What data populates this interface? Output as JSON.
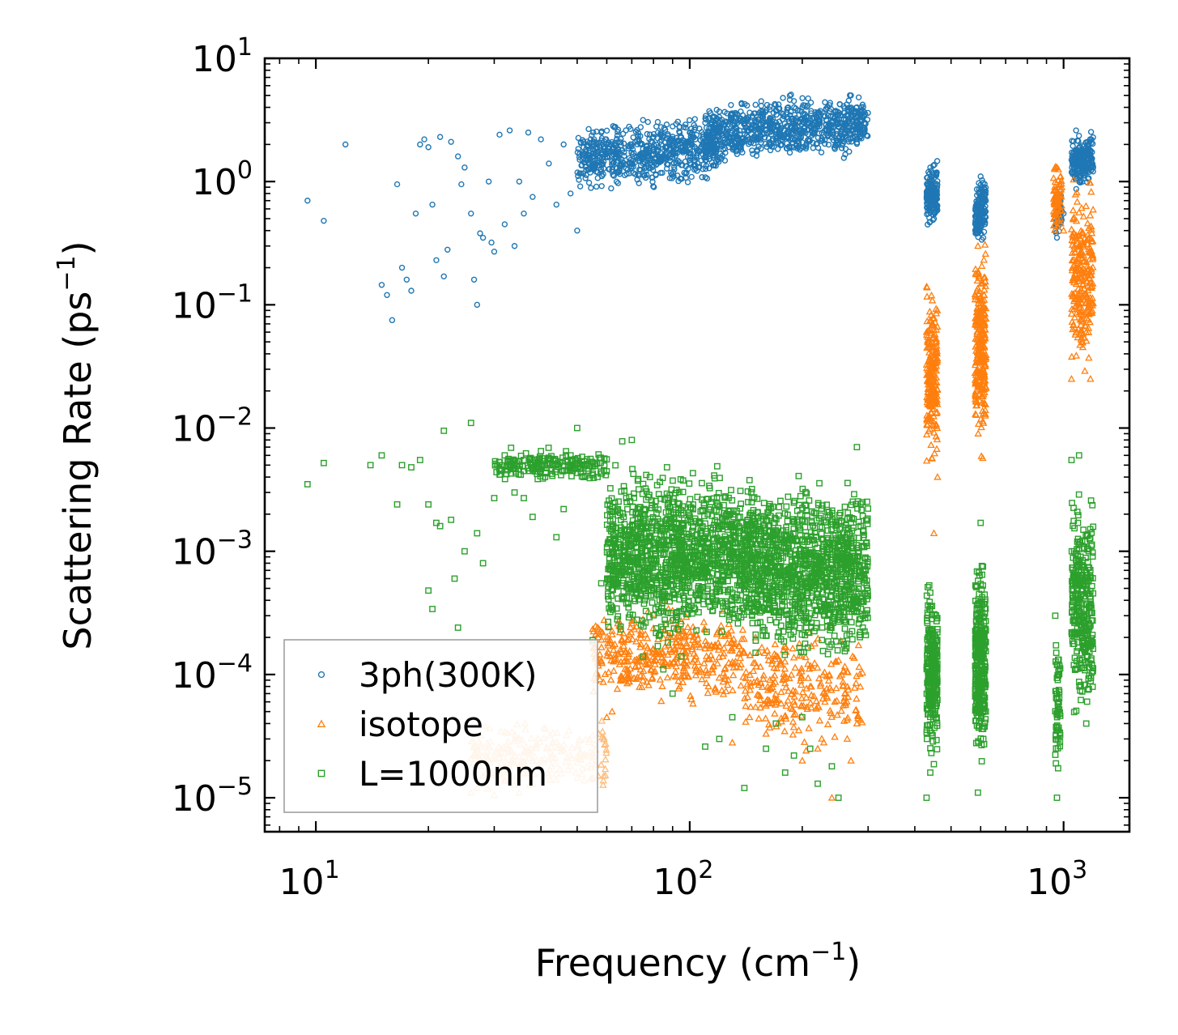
{
  "chart_data": {
    "type": "scatter",
    "xscale": "log",
    "yscale": "log",
    "xlim": [
      7.3,
      1500
    ],
    "ylim": [
      5.3e-06,
      10
    ],
    "xlabel": "Frequency (cm",
    "xlabel_unit_exp": "−1",
    "xlabel_close": ")",
    "ylabel": "Scattering Rate (ps",
    "ylabel_unit_exp": "−1",
    "ylabel_close": ")",
    "x_ticks": [
      {
        "value": 10,
        "base": "10",
        "exp": "1"
      },
      {
        "value": 100,
        "base": "10",
        "exp": "2"
      },
      {
        "value": 1000,
        "base": "10",
        "exp": "3"
      }
    ],
    "y_ticks": [
      {
        "value": 10,
        "base": "10",
        "exp": "1"
      },
      {
        "value": 1,
        "base": "10",
        "exp": "0"
      },
      {
        "value": 0.1,
        "base": "10",
        "exp": "−1"
      },
      {
        "value": 0.01,
        "base": "10",
        "exp": "−2"
      },
      {
        "value": 0.001,
        "base": "10",
        "exp": "−3"
      },
      {
        "value": 0.0001,
        "base": "10",
        "exp": "−4"
      },
      {
        "value": 1e-05,
        "base": "10",
        "exp": "−5"
      }
    ],
    "legend_position": "lower-left",
    "series": [
      {
        "name": "3ph(300K)",
        "marker": "circle",
        "color": "#1f77b4",
        "points": [
          [
            9.5,
            0.7
          ],
          [
            10.5,
            0.48
          ],
          [
            12,
            2.0
          ],
          [
            15,
            0.145
          ],
          [
            15.5,
            0.12
          ],
          [
            16,
            0.075
          ],
          [
            16.5,
            0.95
          ],
          [
            17,
            0.2
          ],
          [
            17.5,
            0.16
          ],
          [
            18,
            0.13
          ],
          [
            18.5,
            0.55
          ],
          [
            19,
            2.0
          ],
          [
            19.5,
            2.2
          ],
          [
            20,
            1.9
          ],
          [
            20.5,
            0.65
          ],
          [
            21,
            0.23
          ],
          [
            21.5,
            2.3
          ],
          [
            22,
            0.17
          ],
          [
            22.5,
            0.28
          ],
          [
            23,
            2.1
          ],
          [
            24,
            1.6
          ],
          [
            24.5,
            0.95
          ],
          [
            25,
            1.3
          ],
          [
            26,
            0.55
          ],
          [
            26.5,
            0.16
          ],
          [
            27,
            0.1
          ],
          [
            27.5,
            0.38
          ],
          [
            28,
            0.35
          ],
          [
            29,
            1.0
          ],
          [
            29.5,
            0.32
          ],
          [
            30,
            0.27
          ],
          [
            31,
            2.4
          ],
          [
            32,
            0.45
          ],
          [
            33,
            2.6
          ],
          [
            34,
            0.3
          ],
          [
            35,
            1.0
          ],
          [
            36,
            0.55
          ],
          [
            37,
            2.5
          ],
          [
            38,
            0.75
          ],
          [
            40,
            2.2
          ],
          [
            42,
            1.4
          ],
          [
            44,
            0.65
          ],
          [
            46,
            2.0
          ],
          [
            48,
            0.8
          ],
          [
            50,
            0.4
          ],
          [
            52,
            2.1
          ],
          [
            55,
            1.3
          ],
          [
            58,
            2.5
          ],
          [
            62,
            1.2
          ],
          [
            66,
            1.8
          ],
          [
            70,
            2.0
          ],
          [
            75,
            1.4
          ],
          [
            80,
            2.3
          ],
          [
            85,
            1.6
          ],
          [
            90,
            2.8
          ],
          [
            95,
            1.9
          ],
          [
            100,
            2.5
          ],
          [
            110,
            3.0
          ],
          [
            120,
            2.0
          ],
          [
            130,
            3.5
          ],
          [
            140,
            2.6
          ],
          [
            150,
            4.2
          ],
          [
            160,
            2.9
          ],
          [
            170,
            3.8
          ],
          [
            180,
            2.4
          ],
          [
            190,
            4.5
          ],
          [
            200,
            3.2
          ],
          [
            210,
            2.8
          ],
          [
            220,
            3.6
          ],
          [
            230,
            4.4
          ],
          [
            240,
            3.0
          ],
          [
            250,
            3.5
          ],
          [
            260,
            2.9
          ],
          [
            270,
            5.0
          ],
          [
            280,
            4.0
          ],
          [
            290,
            3.3
          ],
          [
            430,
            0.75
          ],
          [
            440,
            1.3
          ],
          [
            450,
            0.5
          ],
          [
            590,
            0.6
          ],
          [
            600,
            1.1
          ],
          [
            610,
            0.35
          ],
          [
            960,
            0.35
          ],
          [
            1000,
            0.55
          ],
          [
            1050,
            1.5
          ],
          [
            1080,
            2.6
          ],
          [
            1100,
            1.0
          ],
          [
            1150,
            1.8
          ],
          [
            1200,
            1.3
          ]
        ],
        "clusters": [
          {
            "x": [
              50,
              120
            ],
            "y": [
              0.8,
              3.5
            ],
            "n": 650
          },
          {
            "x": [
              110,
              300
            ],
            "y": [
              1.3,
              5.5
            ],
            "n": 800
          },
          {
            "x": [
              430,
              460
            ],
            "y": [
              0.4,
              1.5
            ],
            "n": 160
          },
          {
            "x": [
              580,
              620
            ],
            "y": [
              0.3,
              1.2
            ],
            "n": 160
          },
          {
            "x": [
              950,
              990
            ],
            "y": [
              0.35,
              0.9
            ],
            "n": 50
          },
          {
            "x": [
              1050,
              1200
            ],
            "y": [
              0.8,
              2.6
            ],
            "n": 220
          }
        ]
      },
      {
        "name": "isotope",
        "marker": "triangle",
        "color": "#ff7f0e",
        "faded_color": "#ffbb78",
        "points": [
          [
            26,
            1.1e-05
          ],
          [
            27,
            1.2e-05
          ],
          [
            28,
            1.5e-05
          ],
          [
            30,
            1.05e-05
          ],
          [
            32,
            1.4e-05
          ],
          [
            35,
            1.1e-05
          ],
          [
            38,
            1.3e-05
          ],
          [
            42,
            1.5e-05
          ],
          [
            45,
            1.7e-05
          ],
          [
            48,
            2.2e-05
          ],
          [
            50,
            2.6e-05
          ],
          [
            55,
            3.2e-05
          ],
          [
            60,
            4.5e-05
          ],
          [
            62,
            5e-05
          ],
          [
            65,
            0.00022
          ],
          [
            70,
            0.00026
          ],
          [
            75,
            0.00028
          ],
          [
            80,
            0.00031
          ],
          [
            85,
            0.0004
          ],
          [
            90,
            0.00033
          ],
          [
            95,
            0.00027
          ],
          [
            100,
            0.00022
          ],
          [
            110,
            0.00023
          ],
          [
            120,
            0.00017
          ],
          [
            130,
            2.8e-05
          ],
          [
            140,
            0.00015
          ],
          [
            150,
            0.0002
          ],
          [
            160,
            3.3e-05
          ],
          [
            175,
            0.00012
          ],
          [
            190,
            6e-05
          ],
          [
            200,
            2e-05
          ],
          [
            210,
            8e-05
          ],
          [
            220,
            2.5e-05
          ],
          [
            230,
            6e-05
          ],
          [
            240,
            1e-05
          ],
          [
            250,
            0.00013
          ],
          [
            260,
            7e-05
          ],
          [
            270,
            2e-05
          ],
          [
            280,
            4e-05
          ],
          [
            430,
            0.06
          ],
          [
            440,
            0.012
          ],
          [
            450,
            0.0014
          ],
          [
            460,
            0.004
          ],
          [
            590,
            0.3
          ],
          [
            600,
            0.09
          ],
          [
            610,
            0.035
          ],
          [
            960,
            1.3
          ],
          [
            1000,
            0.4
          ],
          [
            1050,
            0.025
          ],
          [
            1100,
            0.3
          ],
          [
            1150,
            0.06
          ],
          [
            1180,
            0.025
          ]
        ],
        "clusters": [
          {
            "x": [
              26,
              60
            ],
            "y": [
              1e-05,
              5e-05
            ],
            "n": 220,
            "faded": true
          },
          {
            "x": [
              55,
              140
            ],
            "y": [
              5e-05,
              0.0004
            ],
            "n": 400
          },
          {
            "x": [
              140,
              290
            ],
            "y": [
              2e-05,
              0.0003
            ],
            "n": 250
          },
          {
            "x": [
              430,
              460
            ],
            "y": [
              0.004,
              0.18
            ],
            "n": 220
          },
          {
            "x": [
              580,
              620
            ],
            "y": [
              0.005,
              0.4
            ],
            "n": 260
          },
          {
            "x": [
              940,
              990
            ],
            "y": [
              0.3,
              1.7
            ],
            "n": 70
          },
          {
            "x": [
              1050,
              1200
            ],
            "y": [
              0.02,
              1.5
            ],
            "n": 260
          }
        ]
      },
      {
        "name": "L=1000nm",
        "marker": "square",
        "color": "#2ca02c",
        "points": [
          [
            9.5,
            0.0035
          ],
          [
            10.5,
            0.0052
          ],
          [
            14,
            0.005
          ],
          [
            15,
            0.006
          ],
          [
            16.5,
            0.0024
          ],
          [
            17,
            0.005
          ],
          [
            18,
            0.0048
          ],
          [
            19,
            0.0055
          ],
          [
            20,
            0.0024
          ],
          [
            20,
            0.00048
          ],
          [
            20.5,
            0.00034
          ],
          [
            21,
            0.0017
          ],
          [
            21.5,
            0.0016
          ],
          [
            22,
            0.0095
          ],
          [
            23,
            0.0018
          ],
          [
            23.5,
            0.0006
          ],
          [
            24,
            0.00024
          ],
          [
            25,
            0.001
          ],
          [
            26,
            0.011
          ],
          [
            27,
            0.0014
          ],
          [
            28,
            0.0008
          ],
          [
            30,
            0.0027
          ],
          [
            32,
            0.006
          ],
          [
            34,
            0.003
          ],
          [
            36,
            0.0027
          ],
          [
            38,
            0.0019
          ],
          [
            40,
            0.0065
          ],
          [
            44,
            0.0013
          ],
          [
            46,
            0.0022
          ],
          [
            48,
            0.006
          ],
          [
            50,
            0.01
          ],
          [
            52,
            0.004
          ],
          [
            55,
            0.00019
          ],
          [
            58,
            0.00055
          ],
          [
            62,
            0.00035
          ],
          [
            64,
            0.00028
          ],
          [
            66,
            0.0078
          ],
          [
            70,
            0.008
          ],
          [
            75,
            0.00014
          ],
          [
            80,
            0.0005
          ],
          [
            85,
            0.00011
          ],
          [
            90,
            7e-05
          ],
          [
            95,
            0.00014
          ],
          [
            100,
            0.0013
          ],
          [
            110,
            2.6e-05
          ],
          [
            120,
            3e-05
          ],
          [
            130,
            4.5e-05
          ],
          [
            140,
            1.2e-05
          ],
          [
            150,
            0.00015
          ],
          [
            160,
            2.5e-05
          ],
          [
            170,
            4e-05
          ],
          [
            180,
            1.6e-05
          ],
          [
            190,
            2.2e-05
          ],
          [
            200,
            4.5e-05
          ],
          [
            210,
            2.5e-05
          ],
          [
            220,
            1.3e-05
          ],
          [
            230,
            0.00035
          ],
          [
            240,
            1.8e-05
          ],
          [
            250,
            1e-05
          ],
          [
            260,
            0.0006
          ],
          [
            270,
            0.0011
          ],
          [
            280,
            0.007
          ],
          [
            290,
            0.0025
          ],
          [
            430,
            1e-05
          ],
          [
            440,
            1.6e-05
          ],
          [
            590,
            1.1e-05
          ],
          [
            600,
            0.0017
          ],
          [
            610,
            3e-05
          ],
          [
            950,
            0.0003
          ],
          [
            960,
            1e-05
          ],
          [
            1050,
            0.0055
          ],
          [
            1100,
            0.006
          ],
          [
            1150,
            4e-05
          ],
          [
            1180,
            0.00025
          ]
        ],
        "clusters": [
          {
            "x": [
              30,
              60
            ],
            "y": [
              0.0035,
              0.007
            ],
            "n": 200
          },
          {
            "x": [
              60,
              150
            ],
            "y": [
              0.00015,
              0.006
            ],
            "n": 1400
          },
          {
            "x": [
              150,
              300
            ],
            "y": [
              0.0001,
              0.005
            ],
            "n": 1100
          },
          {
            "x": [
              430,
              460
            ],
            "y": [
              1.5e-05,
              0.0008
            ],
            "n": 260
          },
          {
            "x": [
              580,
              620
            ],
            "y": [
              1.5e-05,
              0.0012
            ],
            "n": 300
          },
          {
            "x": [
              950,
              980
            ],
            "y": [
              1.2e-05,
              0.00028
            ],
            "n": 60
          },
          {
            "x": [
              1050,
              1200
            ],
            "y": [
              3e-05,
              0.004
            ],
            "n": 320
          }
        ]
      }
    ]
  }
}
